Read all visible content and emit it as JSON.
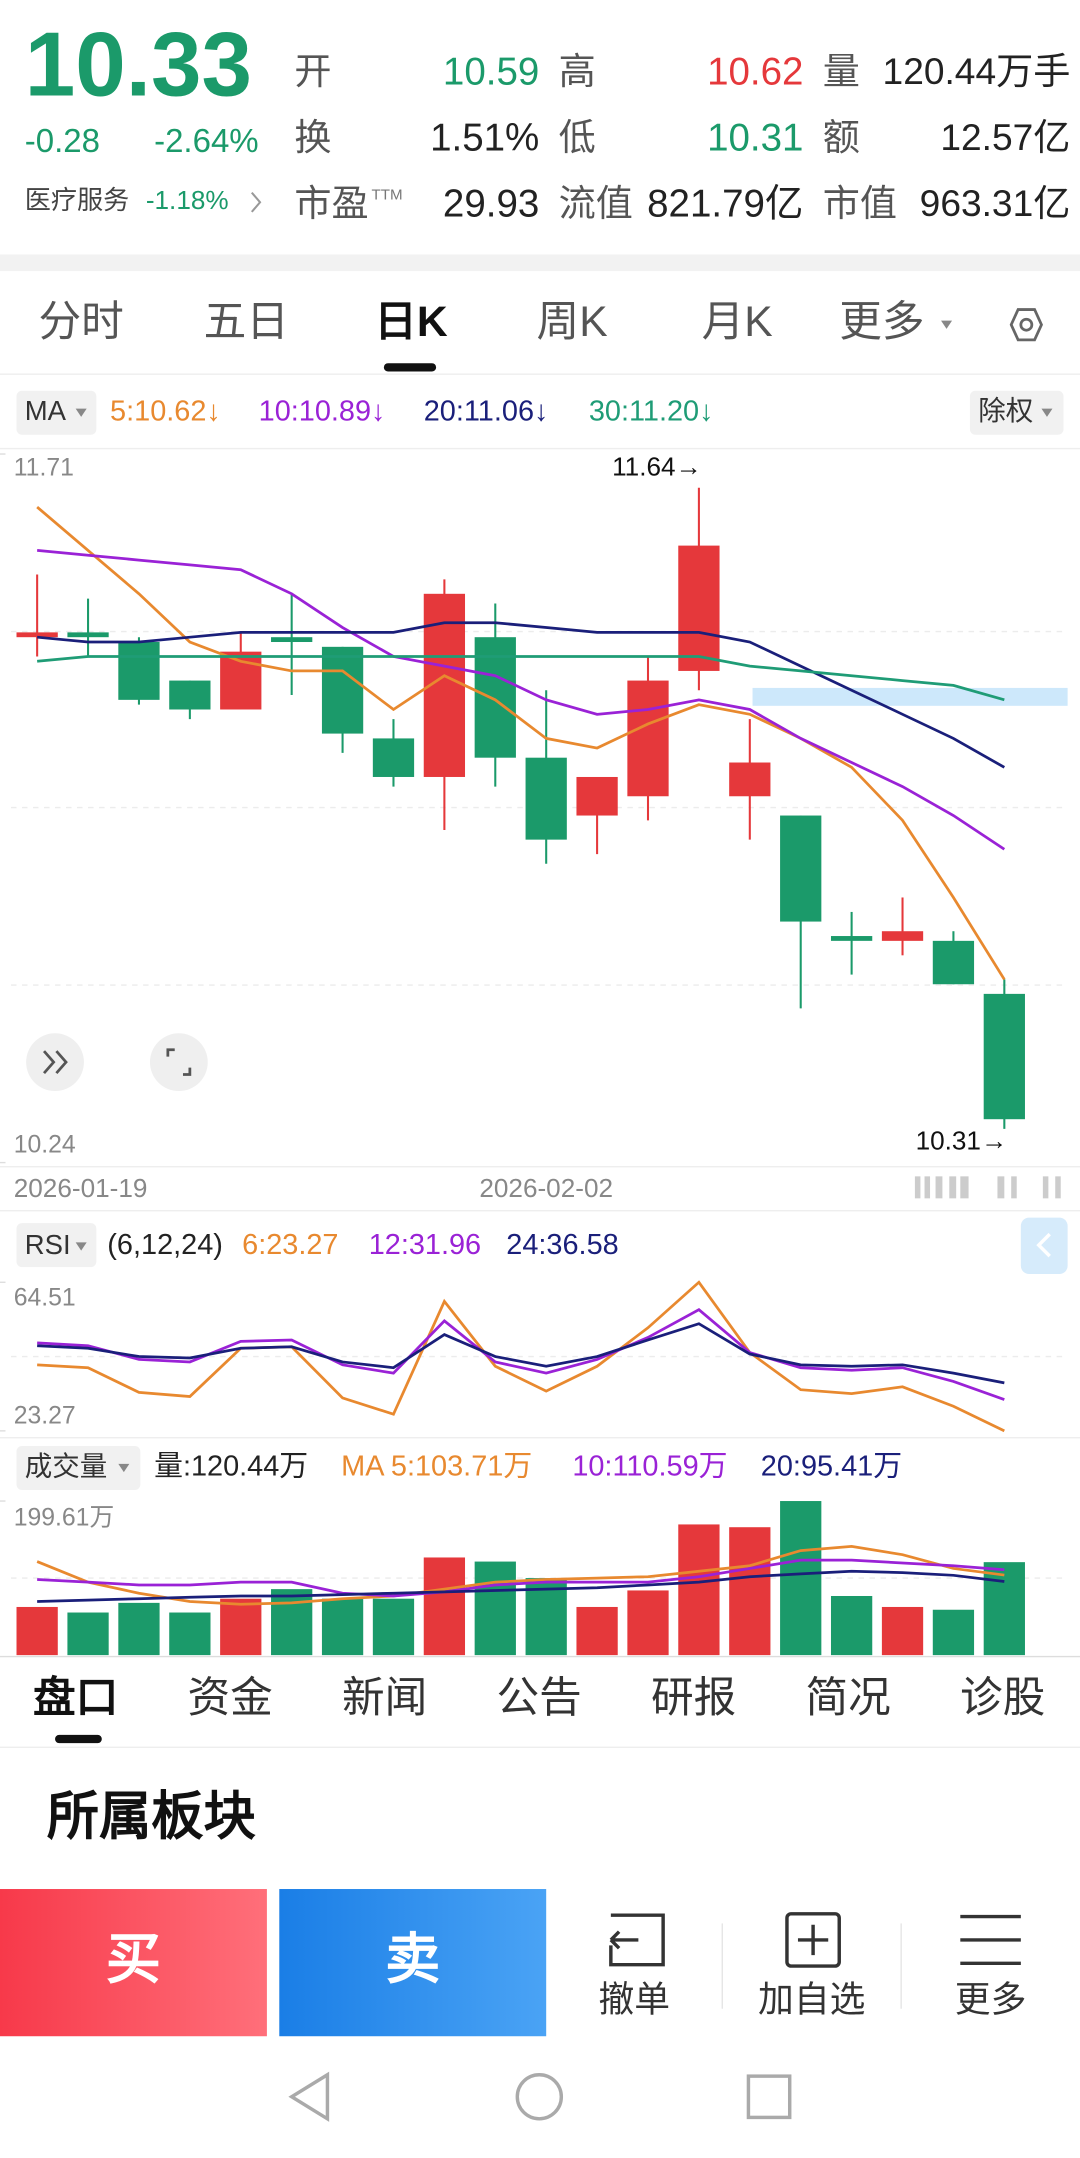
{
  "header": {
    "price": "10.33",
    "change": "-0.28",
    "change_pct": "-2.64%",
    "sector": "医疗服务",
    "sector_change": "-1.18%",
    "stats": [
      {
        "label": "开",
        "value": "10.59"
      },
      {
        "label": "高",
        "value": "10.62"
      },
      {
        "label": "量",
        "value": "120.44万手"
      },
      {
        "label": "换",
        "value": "1.51%"
      },
      {
        "label": "低",
        "value": "10.31"
      },
      {
        "label": "额",
        "value": "12.57亿"
      },
      {
        "label": "市盈",
        "sup": "TTM",
        "value": "29.93"
      },
      {
        "label": "流值",
        "value": "821.79亿"
      },
      {
        "label": "市值",
        "value": "963.31亿"
      }
    ]
  },
  "tabs": [
    "分时",
    "五日",
    "日K",
    "周K",
    "月K",
    "更多"
  ],
  "kline": {
    "indicator": "MA",
    "legend": [
      "5:10.62↓",
      "10:10.89↓",
      "20:11.06↓",
      "30:11.20↓"
    ],
    "adjust": "除权",
    "ylim": [
      10.24,
      11.71
    ],
    "yticks": [
      10.24,
      11.71
    ],
    "high_label": "11.64→",
    "low_label": "10.31→",
    "dates": [
      "2026-01-19",
      "2026-02-02"
    ],
    "up_color": "#e5383b",
    "down_color": "#1b9a6a",
    "candles": [
      {
        "o": 11.33,
        "h": 11.46,
        "l": 11.29,
        "c": 11.34
      },
      {
        "o": 11.34,
        "h": 11.41,
        "l": 11.29,
        "c": 11.33
      },
      {
        "o": 11.32,
        "h": 11.33,
        "l": 11.19,
        "c": 11.2
      },
      {
        "o": 11.24,
        "h": 11.24,
        "l": 11.16,
        "c": 11.18
      },
      {
        "o": 11.18,
        "h": 11.34,
        "l": 11.18,
        "c": 11.3
      },
      {
        "o": 11.33,
        "h": 11.42,
        "l": 11.21,
        "c": 11.32
      },
      {
        "o": 11.31,
        "h": 11.31,
        "l": 11.09,
        "c": 11.13
      },
      {
        "o": 11.12,
        "h": 11.16,
        "l": 11.02,
        "c": 11.04
      },
      {
        "o": 11.04,
        "h": 11.45,
        "l": 10.93,
        "c": 11.42
      },
      {
        "o": 11.33,
        "h": 11.4,
        "l": 11.02,
        "c": 11.08
      },
      {
        "o": 11.08,
        "h": 11.22,
        "l": 10.86,
        "c": 10.91
      },
      {
        "o": 10.96,
        "h": 11.04,
        "l": 10.88,
        "c": 11.04
      },
      {
        "o": 11.0,
        "h": 11.29,
        "l": 10.95,
        "c": 11.24
      },
      {
        "o": 11.26,
        "h": 11.64,
        "l": 11.22,
        "c": 11.52
      },
      {
        "o": 11.0,
        "h": 11.16,
        "l": 10.91,
        "c": 11.07
      },
      {
        "o": 10.96,
        "h": 10.96,
        "l": 10.56,
        "c": 10.74
      },
      {
        "o": 10.71,
        "h": 10.76,
        "l": 10.63,
        "c": 10.7
      },
      {
        "o": 10.7,
        "h": 10.79,
        "l": 10.67,
        "c": 10.72
      },
      {
        "o": 10.7,
        "h": 10.72,
        "l": 10.61,
        "c": 10.61
      },
      {
        "o": 10.59,
        "h": 10.62,
        "l": 10.31,
        "c": 10.33
      }
    ],
    "ma": [
      {
        "color": "#e8892f",
        "values": [
          11.6,
          11.51,
          11.42,
          11.32,
          11.28,
          11.26,
          11.26,
          11.18,
          11.25,
          11.2,
          11.12,
          11.1,
          11.15,
          11.19,
          11.17,
          11.12,
          11.06,
          10.95,
          10.79,
          10.62
        ]
      },
      {
        "color": "#9a22d6",
        "values": [
          11.51,
          11.5,
          11.49,
          11.48,
          11.47,
          11.42,
          11.35,
          11.29,
          11.27,
          11.25,
          11.2,
          11.17,
          11.18,
          11.2,
          11.18,
          11.12,
          11.07,
          11.02,
          10.96,
          10.89
        ]
      },
      {
        "color": "#1a1f7a",
        "values": [
          11.33,
          11.32,
          11.32,
          11.33,
          11.34,
          11.34,
          11.34,
          11.34,
          11.36,
          11.36,
          11.35,
          11.34,
          11.34,
          11.34,
          11.32,
          11.27,
          11.22,
          11.17,
          11.12,
          11.06
        ]
      },
      {
        "color": "#1f9c76",
        "values": [
          11.28,
          11.29,
          11.29,
          11.29,
          11.29,
          11.29,
          11.29,
          11.29,
          11.29,
          11.29,
          11.29,
          11.29,
          11.29,
          11.29,
          11.27,
          11.26,
          11.25,
          11.24,
          11.23,
          11.2
        ]
      }
    ]
  },
  "rsi": {
    "name": "RSI",
    "params": "(6,12,24)",
    "legend": [
      "6:23.27",
      "12:31.96",
      "24:36.58"
    ],
    "ylim": [
      23.27,
      64.51
    ],
    "yticks": [
      23.27,
      64.51
    ],
    "series": [
      {
        "color": "#e8892f",
        "values": [
          41.6,
          40.8,
          33.96,
          32.8,
          46.2,
          46.6,
          32.4,
          27.9,
          59.2,
          41.2,
          34.3,
          41.2,
          51.9,
          64.51,
          45.0,
          34.7,
          33.6,
          35.5,
          30.1,
          23.27
        ]
      },
      {
        "color": "#9a22d6",
        "values": [
          47.7,
          46.9,
          43.1,
          42.4,
          48.1,
          48.5,
          41.6,
          39.3,
          53.8,
          42.4,
          39.3,
          43.1,
          49.2,
          56.9,
          45.0,
          40.8,
          40.1,
          40.8,
          37.0,
          31.96
        ]
      },
      {
        "color": "#1a1f7a",
        "values": [
          46.9,
          46.2,
          43.9,
          43.5,
          46.2,
          46.6,
          42.4,
          40.8,
          50.0,
          43.9,
          41.2,
          43.9,
          48.5,
          53.0,
          44.6,
          41.6,
          41.2,
          41.6,
          39.3,
          36.58
        ]
      }
    ]
  },
  "volume": {
    "name": "成交量",
    "legend": [
      "量:120.44万",
      "MA 5:103.71万",
      "10:110.59万",
      "20:95.41万"
    ],
    "ylim": [
      0,
      199.61
    ],
    "yticks": [
      {
        "value": 199.61,
        "label": "199.61万"
      }
    ],
    "values": [
      62.4,
      55.2,
      67.7,
      55.2,
      73.1,
      85.5,
      73.1,
      73.1,
      126.5,
      121.2,
      99.8,
      62.4,
      83.8,
      169.3,
      165.7,
      199.61,
      76.6,
      62.4,
      58.8,
      120.44
    ],
    "ma": [
      {
        "color": "#e8892f",
        "values": [
          121.2,
          94.5,
          80.2,
          69.5,
          65.9,
          67.7,
          73.1,
          76.6,
          85.5,
          94.5,
          98.0,
          99.8,
          101.6,
          108.7,
          115.8,
          135.4,
          140.8,
          130.1,
          112.3,
          103.71
        ]
      },
      {
        "color": "#9a22d6",
        "values": [
          98.0,
          94.5,
          90.9,
          90.9,
          94.5,
          94.5,
          80.2,
          76.6,
          82.0,
          90.9,
          94.5,
          94.5,
          94.5,
          101.6,
          112.3,
          123.0,
          123.0,
          119.4,
          115.8,
          110.59
        ]
      },
      {
        "color": "#1a1f7a",
        "values": [
          69.5,
          71.3,
          73.1,
          74.9,
          76.6,
          76.6,
          78.4,
          80.2,
          82.0,
          83.8,
          85.5,
          87.3,
          90.9,
          94.5,
          101.6,
          105.2,
          108.7,
          106.9,
          103.4,
          95.41
        ]
      }
    ]
  },
  "bottom_tabs": [
    "盘口",
    "资金",
    "新闻",
    "公告",
    "研报",
    "简况",
    "诊股"
  ],
  "section_title": "所属板块",
  "actions": {
    "buy": "买",
    "sell": "卖",
    "items": [
      "撤单",
      "加自选",
      "更多"
    ]
  }
}
